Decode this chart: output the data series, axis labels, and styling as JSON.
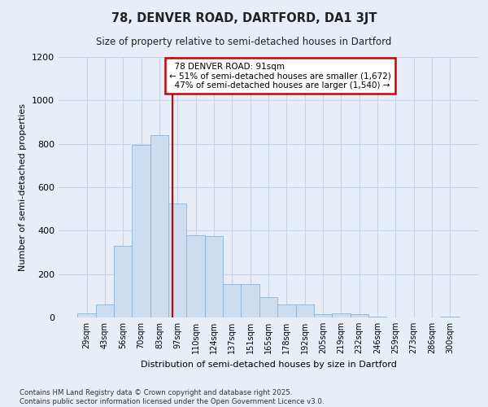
{
  "title": "78, DENVER ROAD, DARTFORD, DA1 3JT",
  "subtitle": "Size of property relative to semi-detached houses in Dartford",
  "xlabel": "Distribution of semi-detached houses by size in Dartford",
  "ylabel": "Number of semi-detached properties",
  "bar_labels": [
    "29sqm",
    "43sqm",
    "56sqm",
    "70sqm",
    "83sqm",
    "97sqm",
    "110sqm",
    "124sqm",
    "137sqm",
    "151sqm",
    "165sqm",
    "178sqm",
    "192sqm",
    "205sqm",
    "219sqm",
    "232sqm",
    "246sqm",
    "259sqm",
    "273sqm",
    "286sqm",
    "300sqm"
  ],
  "bar_values": [
    20,
    60,
    330,
    795,
    840,
    525,
    380,
    375,
    155,
    155,
    95,
    60,
    60,
    15,
    20,
    15,
    5,
    0,
    0,
    0,
    5
  ],
  "bar_color": "#ccddf0",
  "bar_edgecolor": "#8ab4d8",
  "property_label": "78 DENVER ROAD: 91sqm",
  "pct_smaller": 51,
  "pct_larger": 47,
  "count_smaller": 1672,
  "count_larger": 1540,
  "vline_color": "#cc0000",
  "annotation_box_edgecolor": "#cc0000",
  "grid_color": "#c8d4e8",
  "bg_color": "#e8eef8",
  "plot_bg_color": "#e8eef8",
  "ylim": [
    0,
    1200
  ],
  "yticks": [
    0,
    200,
    400,
    600,
    800,
    1000,
    1200
  ],
  "footer": "Contains HM Land Registry data © Crown copyright and database right 2025.\nContains public sector information licensed under the Open Government Licence v3.0.",
  "vline_x_index": 4.7
}
